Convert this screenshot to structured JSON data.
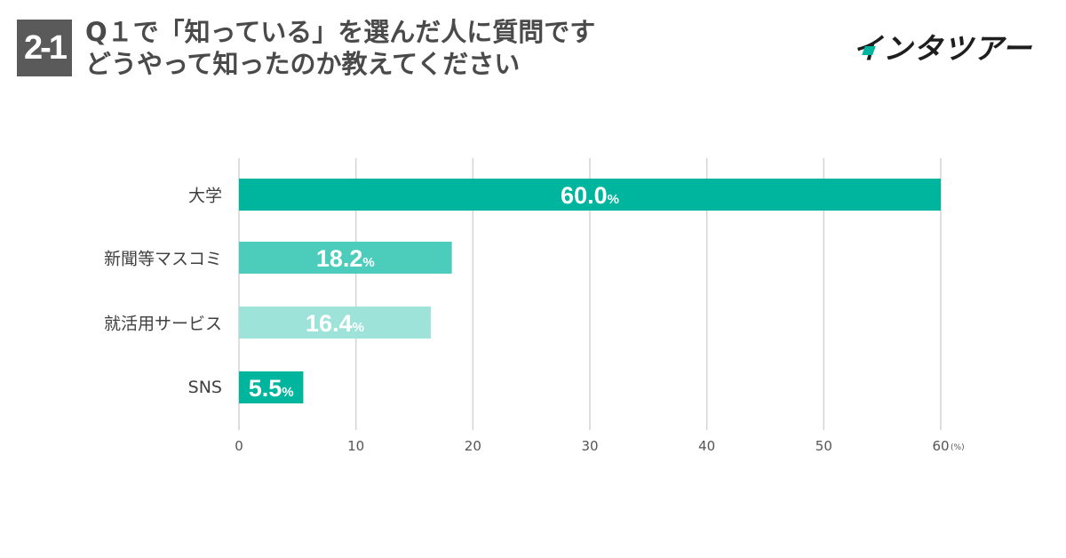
{
  "badge": "2-1",
  "title": {
    "line1": "Q１で「知っている」を選んだ人に質問です",
    "line2": "どうやって知ったのか教えてください"
  },
  "logo": "インタツアー",
  "colors": {
    "bar1": "#00b59e",
    "bar2": "#4ccdbb",
    "bar3": "#9de3d9",
    "bar4": "#00b59e",
    "grid": "#d4d4d4",
    "text": "#4a4a4a"
  },
  "chart_data": {
    "type": "bar",
    "orientation": "horizontal",
    "categories": [
      "大学",
      "新聞等マスコミ",
      "就活用サービス",
      "SNS"
    ],
    "values": [
      60.0,
      18.2,
      16.4,
      5.5
    ],
    "value_labels": [
      "60.0",
      "18.2",
      "16.4",
      "5.5"
    ],
    "value_suffix": "%",
    "xlim": [
      0,
      60
    ],
    "xticks": [
      "0",
      "10",
      "20",
      "30",
      "40",
      "50",
      "60"
    ],
    "xunit": "(%)",
    "grid": true
  }
}
